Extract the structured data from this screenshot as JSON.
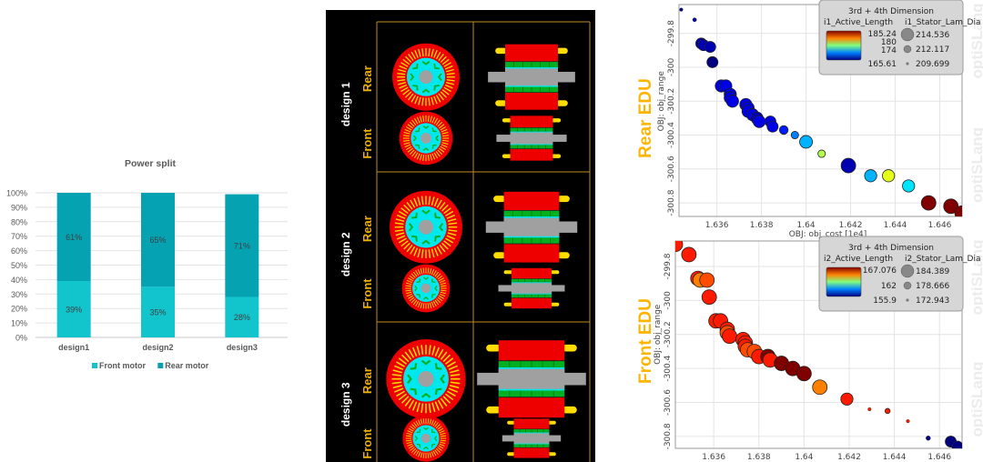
{
  "chart_data": [
    {
      "type": "bar",
      "stacked": true,
      "title": "Power split",
      "categories": [
        "design1",
        "design2",
        "design3"
      ],
      "series": [
        {
          "name": "Front motor",
          "values": [
            39,
            35,
            28
          ],
          "color": "#12c4cc",
          "labels": [
            "39%",
            "35%",
            "28%"
          ]
        },
        {
          "name": "Rear motor",
          "values": [
            61,
            65,
            71
          ],
          "color": "#05a2b2",
          "labels": [
            "61%",
            "65%",
            "71%"
          ]
        }
      ],
      "yticks": [
        "0%",
        "10%",
        "20%",
        "30%",
        "40%",
        "50%",
        "60%",
        "70%",
        "80%",
        "90%",
        "100%"
      ],
      "ylim": [
        0,
        100
      ],
      "legend": "bottom",
      "grid": true
    },
    {
      "type": "scatter",
      "side_label": "Rear EDU",
      "xlabel": "OBJ: obj_cost [1e4]",
      "ylabel": "OBJ: obj_range",
      "xlim": [
        1.6343,
        1.647
      ],
      "ylim": [
        -300.88,
        -299.63
      ],
      "xticks": [
        1.636,
        1.638,
        1.64,
        1.642,
        1.644,
        1.646
      ],
      "xtick_labels": [
        "1.636",
        "1.638",
        "1.64",
        "1.642",
        "1.644",
        "1.646"
      ],
      "yticks": [
        -299.8,
        -300,
        -300.2,
        -300.4,
        -300.6,
        -300.8
      ],
      "ytick_labels": [
        "-299.8",
        "-300",
        "-300.2",
        "-300.4",
        "-300.6",
        "-300.8"
      ],
      "grid": true,
      "watermark": "optiSLang",
      "legend": {
        "title": "3rd + 4th Dimension",
        "color_var": "i1_Active_Length",
        "color_labels": [
          "185.24",
          "180",
          "174",
          "165.61"
        ],
        "size_var": "i1_Stator_Lam_Dia",
        "size_labels": [
          "214.536",
          "212.117",
          "209.699"
        ],
        "placement": "top-right"
      },
      "points": [
        {
          "x": 1.6344,
          "y": -299.66,
          "c": 0.0,
          "s": 0.05
        },
        {
          "x": 1.635,
          "y": -299.72,
          "c": 0.05,
          "s": 0.1
        },
        {
          "x": 1.6353,
          "y": -299.86,
          "c": 0.05,
          "s": 0.7
        },
        {
          "x": 1.6354,
          "y": -299.87,
          "c": 0.05,
          "s": 0.7
        },
        {
          "x": 1.6357,
          "y": -299.88,
          "c": 0.05,
          "s": 0.7
        },
        {
          "x": 1.6358,
          "y": -299.97,
          "c": 0.0,
          "s": 0.7
        },
        {
          "x": 1.6362,
          "y": -300.11,
          "c": 0.1,
          "s": 0.8
        },
        {
          "x": 1.6364,
          "y": -300.11,
          "c": 0.1,
          "s": 0.8
        },
        {
          "x": 1.6366,
          "y": -300.16,
          "c": 0.1,
          "s": 0.8
        },
        {
          "x": 1.6366,
          "y": -300.18,
          "c": 0.1,
          "s": 0.8
        },
        {
          "x": 1.6367,
          "y": -300.2,
          "c": 0.1,
          "s": 0.8
        },
        {
          "x": 1.6373,
          "y": -300.22,
          "c": 0.1,
          "s": 0.8
        },
        {
          "x": 1.6374,
          "y": -300.24,
          "c": 0.1,
          "s": 0.8
        },
        {
          "x": 1.6374,
          "y": -300.26,
          "c": 0.1,
          "s": 0.8
        },
        {
          "x": 1.6376,
          "y": -300.28,
          "c": 0.1,
          "s": 0.8
        },
        {
          "x": 1.6378,
          "y": -300.3,
          "c": 0.05,
          "s": 0.8
        },
        {
          "x": 1.6379,
          "y": -300.32,
          "c": 0.1,
          "s": 0.8
        },
        {
          "x": 1.6384,
          "y": -300.32,
          "c": 0.1,
          "s": 0.7
        },
        {
          "x": 1.6385,
          "y": -300.35,
          "c": 0.1,
          "s": 0.7
        },
        {
          "x": 1.639,
          "y": -300.37,
          "c": 0.15,
          "s": 0.5
        },
        {
          "x": 1.6395,
          "y": -300.4,
          "c": 0.25,
          "s": 0.4
        },
        {
          "x": 1.64,
          "y": -300.44,
          "c": 0.3,
          "s": 0.85
        },
        {
          "x": 1.6407,
          "y": -300.51,
          "c": 0.55,
          "s": 0.4
        },
        {
          "x": 1.6419,
          "y": -300.58,
          "c": 0.05,
          "s": 1.0
        },
        {
          "x": 1.6429,
          "y": -300.64,
          "c": 0.3,
          "s": 0.8
        },
        {
          "x": 1.6437,
          "y": -300.64,
          "c": 0.6,
          "s": 0.8
        },
        {
          "x": 1.6446,
          "y": -300.7,
          "c": 0.35,
          "s": 0.8
        },
        {
          "x": 1.6455,
          "y": -300.8,
          "c": 1.0,
          "s": 1.0
        },
        {
          "x": 1.6465,
          "y": -300.82,
          "c": 1.0,
          "s": 1.0
        },
        {
          "x": 1.647,
          "y": -300.86,
          "c": 1.0,
          "s": 1.0
        }
      ]
    },
    {
      "type": "scatter",
      "side_label": "Front EDU",
      "xlabel": "OBJ: obj_cost [1e4]",
      "ylabel": "OBJ: obj_range",
      "xlim": [
        1.6343,
        1.647
      ],
      "ylim": [
        -300.87,
        -299.65
      ],
      "xticks": [
        1.636,
        1.638,
        1.64,
        1.642,
        1.644,
        1.646
      ],
      "xtick_labels": [
        "1.636",
        "1.638",
        "1.64",
        "1.642",
        "1.644",
        "1.646"
      ],
      "yticks": [
        -299.8,
        -300,
        -300.2,
        -300.4,
        -300.6,
        -300.8
      ],
      "ytick_labels": [
        "-299.8",
        "-300",
        "-300.2",
        "-300.4",
        "-300.6",
        "-300.8"
      ],
      "grid": true,
      "watermark": "optiSLang",
      "legend": {
        "title": "3rd + 4th Dimension",
        "color_var": "i2_Active_Length",
        "color_labels": [
          "167.076",
          "162",
          "155.9"
        ],
        "size_var": "i2_Stator_Lam_Dia",
        "size_labels": [
          "184.389",
          "178.666",
          "172.943"
        ],
        "placement": "top-right"
      },
      "points": [
        {
          "x": 1.6343,
          "y": -299.67,
          "c": 0.85,
          "s": 1.0
        },
        {
          "x": 1.6349,
          "y": -299.73,
          "c": 0.85,
          "s": 1.0
        },
        {
          "x": 1.6353,
          "y": -299.87,
          "c": 0.85,
          "s": 1.0
        },
        {
          "x": 1.6354,
          "y": -299.88,
          "c": 0.75,
          "s": 1.0
        },
        {
          "x": 1.6357,
          "y": -299.88,
          "c": 0.8,
          "s": 1.0
        },
        {
          "x": 1.6358,
          "y": -299.98,
          "c": 0.85,
          "s": 1.0
        },
        {
          "x": 1.6361,
          "y": -300.12,
          "c": 0.85,
          "s": 1.0
        },
        {
          "x": 1.6363,
          "y": -300.12,
          "c": 0.85,
          "s": 1.0
        },
        {
          "x": 1.6366,
          "y": -300.17,
          "c": 0.85,
          "s": 1.0
        },
        {
          "x": 1.6366,
          "y": -300.19,
          "c": 0.8,
          "s": 1.0
        },
        {
          "x": 1.6367,
          "y": -300.21,
          "c": 0.85,
          "s": 1.0
        },
        {
          "x": 1.6373,
          "y": -300.23,
          "c": 0.85,
          "s": 1.0
        },
        {
          "x": 1.6374,
          "y": -300.25,
          "c": 0.85,
          "s": 1.0
        },
        {
          "x": 1.6374,
          "y": -300.27,
          "c": 0.85,
          "s": 1.0
        },
        {
          "x": 1.6375,
          "y": -300.29,
          "c": 0.8,
          "s": 1.0
        },
        {
          "x": 1.6378,
          "y": -300.3,
          "c": 0.8,
          "s": 1.0
        },
        {
          "x": 1.638,
          "y": -300.33,
          "c": 0.85,
          "s": 1.0
        },
        {
          "x": 1.6384,
          "y": -300.33,
          "c": 1.0,
          "s": 1.0
        },
        {
          "x": 1.6385,
          "y": -300.35,
          "c": 0.85,
          "s": 1.0
        },
        {
          "x": 1.639,
          "y": -300.37,
          "c": 1.0,
          "s": 1.0
        },
        {
          "x": 1.6395,
          "y": -300.4,
          "c": 1.0,
          "s": 1.0
        },
        {
          "x": 1.64,
          "y": -300.43,
          "c": 1.0,
          "s": 1.0
        },
        {
          "x": 1.6407,
          "y": -300.51,
          "c": 0.75,
          "s": 1.0
        },
        {
          "x": 1.6419,
          "y": -300.58,
          "c": 0.85,
          "s": 0.8
        },
        {
          "x": 1.6429,
          "y": -300.64,
          "c": 0.85,
          "s": 0.05
        },
        {
          "x": 1.6437,
          "y": -300.65,
          "c": 0.85,
          "s": 0.2
        },
        {
          "x": 1.6446,
          "y": -300.71,
          "c": 0.85,
          "s": 0.05
        },
        {
          "x": 1.6455,
          "y": -300.81,
          "c": 0.0,
          "s": 0.15
        },
        {
          "x": 1.6465,
          "y": -300.83,
          "c": 0.0,
          "s": 0.7
        },
        {
          "x": 1.6468,
          "y": -300.86,
          "c": 0.0,
          "s": 0.7
        }
      ]
    }
  ],
  "motor_panel": {
    "designs": [
      {
        "label": "design 1",
        "rear": {
          "label": "Rear",
          "scale": 1.0,
          "length": 1.0
        },
        "front": {
          "label": "Front",
          "scale": 0.8,
          "length": 0.9
        }
      },
      {
        "label": "design 2",
        "rear": {
          "label": "Rear",
          "scale": 1.08,
          "length": 1.05
        },
        "front": {
          "label": "Front",
          "scale": 0.72,
          "length": 0.85
        }
      },
      {
        "label": "design 3",
        "rear": {
          "label": "Rear",
          "scale": 1.18,
          "length": 1.25
        },
        "front": {
          "label": "Front",
          "scale": 0.7,
          "length": 0.75
        }
      }
    ],
    "colors": {
      "stator": "#ee0000",
      "slots": "#ffdd00",
      "rotor": "#00e8ee",
      "magnets": "#00b020",
      "shaft": "#a0a0a0",
      "frame": "#c08a20",
      "label_accent": "#f0b000",
      "background": "#000000"
    }
  }
}
